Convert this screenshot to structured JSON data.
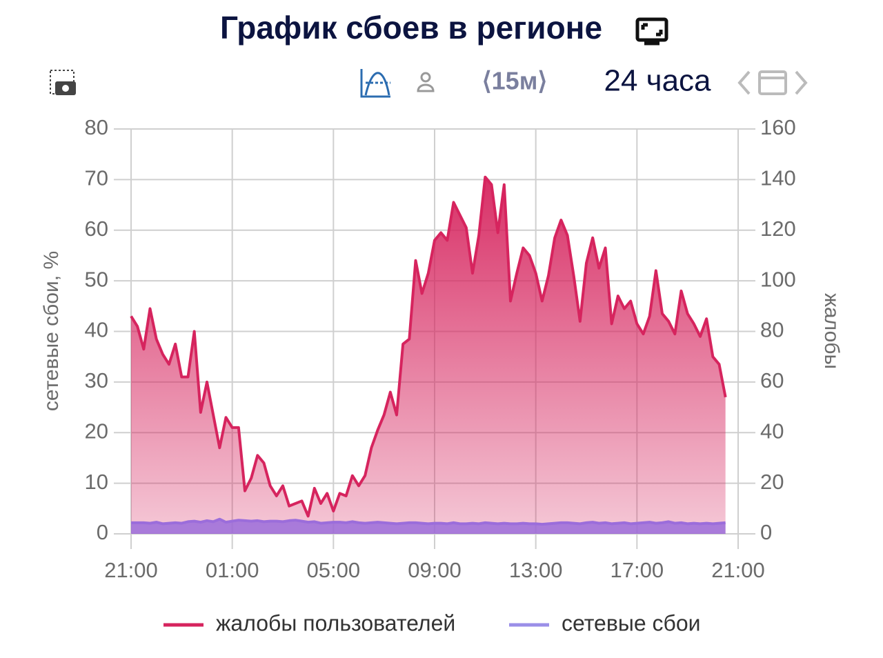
{
  "chart_data": {
    "type": "area",
    "title": "График сбоев в регионе",
    "interval": "⟨15м⟩",
    "range": "24 часа",
    "ylabel": "сетевые сбои, %",
    "y2label": "жалобы",
    "categories": [
      "21:00",
      null,
      null,
      null,
      null,
      null,
      null,
      null,
      null,
      null,
      null,
      null,
      null,
      null,
      null,
      null,
      "01:00",
      null,
      null,
      null,
      null,
      null,
      null,
      null,
      null,
      null,
      null,
      null,
      null,
      null,
      null,
      null,
      "05:00",
      null,
      null,
      null,
      null,
      null,
      null,
      null,
      null,
      null,
      null,
      null,
      null,
      null,
      null,
      null,
      "09:00",
      null,
      null,
      null,
      null,
      null,
      null,
      null,
      null,
      null,
      null,
      null,
      null,
      null,
      null,
      null,
      "13:00",
      null,
      null,
      null,
      null,
      null,
      null,
      null,
      null,
      null,
      null,
      null,
      null,
      null,
      null,
      null,
      "17:00",
      null,
      null,
      null,
      null,
      null,
      null,
      null,
      null,
      null,
      null,
      null,
      null,
      null,
      null,
      null,
      "21:00"
    ],
    "ylim": [
      0,
      80
    ],
    "yticks": [
      0,
      10,
      20,
      30,
      40,
      50,
      60,
      70,
      80
    ],
    "y2lim": [
      0,
      160
    ],
    "y2ticks": [
      0,
      20,
      40,
      60,
      80,
      100,
      120,
      140,
      160
    ],
    "grid": true,
    "legend": "bottom",
    "series": [
      {
        "name": "жалобы пользователей",
        "color": "#d6245e",
        "axis": "y2",
        "values": [
          86,
          82,
          73,
          89,
          77,
          71,
          67,
          75,
          62,
          62,
          80,
          48,
          60,
          47,
          34,
          46,
          42,
          42,
          17,
          22,
          31,
          28,
          19,
          15,
          19,
          11,
          12,
          13,
          7,
          18,
          12,
          16,
          9,
          16,
          15,
          23,
          19,
          23,
          34,
          41,
          47,
          56,
          47,
          75,
          77,
          108,
          95,
          103,
          116,
          119,
          116,
          131,
          126,
          121,
          103,
          118,
          141,
          138,
          119,
          138,
          92,
          103,
          113,
          110,
          103,
          92,
          102,
          117,
          124,
          118,
          102,
          84,
          107,
          117,
          105,
          113,
          83,
          94,
          89,
          92,
          83,
          79,
          86,
          104,
          87,
          84,
          79,
          96,
          87,
          83,
          78,
          85,
          70,
          67,
          54,
          null,
          null
        ]
      },
      {
        "name": "сетевые сбои",
        "color": "#9b6ddb",
        "values": [
          2.2,
          2.2,
          2.2,
          2.1,
          2.3,
          2.0,
          2.1,
          2.2,
          2.1,
          2.4,
          2.5,
          2.3,
          2.6,
          2.4,
          2.9,
          2.3,
          2.5,
          2.7,
          2.6,
          2.5,
          2.6,
          2.4,
          2.5,
          2.5,
          2.4,
          2.6,
          2.7,
          2.5,
          2.3,
          2.4,
          2.1,
          2.2,
          2.3,
          2.3,
          2.2,
          2.4,
          2.2,
          2.1,
          2.2,
          2.3,
          2.2,
          2.1,
          2.0,
          2.1,
          2.2,
          2.2,
          2.1,
          2.0,
          2.1,
          2.1,
          2.0,
          2.2,
          2.0,
          2.0,
          2.1,
          2.0,
          2.2,
          2.1,
          2.0,
          2.1,
          2.0,
          2.0,
          2.1,
          2.0,
          2.0,
          1.9,
          2.0,
          2.1,
          2.2,
          2.2,
          2.1,
          2.0,
          2.2,
          2.3,
          2.1,
          2.2,
          2.0,
          2.1,
          2.2,
          2.0,
          2.1,
          2.2,
          2.3,
          2.1,
          2.2,
          2.4,
          2.1,
          2.2,
          2.0,
          2.1,
          2.0,
          2.1,
          2.0,
          2.1,
          2.2,
          null,
          null
        ]
      }
    ]
  }
}
